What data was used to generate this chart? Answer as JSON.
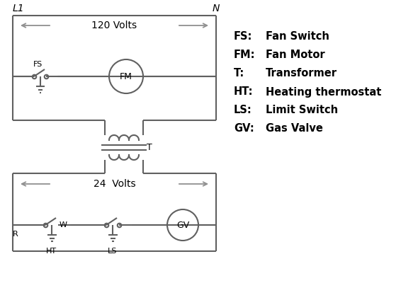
{
  "bg_color": "#ffffff",
  "line_color": "#606060",
  "arrow_color": "#909090",
  "text_color": "#000000",
  "legend": {
    "FS": "Fan Switch",
    "FM": "Fan Motor",
    "T": "Transformer",
    "HT": "Heating thermostat",
    "LS": "Limit Switch",
    "GV": "Gas Valve"
  },
  "L1_label": "L1",
  "N_label": "N",
  "volts120_label": "120 Volts",
  "volts24_label": "24  Volts",
  "T_label": "T",
  "R_label": "R",
  "W_label": "W",
  "FS_label": "FS",
  "FM_label": "FM",
  "GV_label": "GV",
  "HT_label": "HT",
  "LS_label": "LS"
}
